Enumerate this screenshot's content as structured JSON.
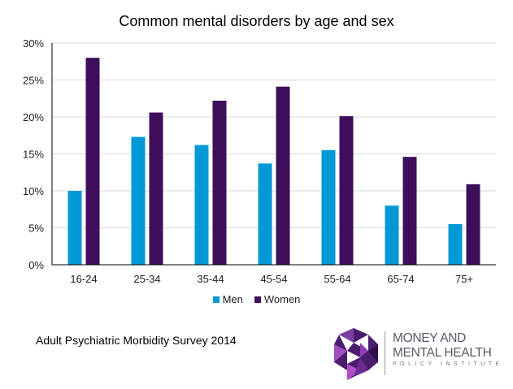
{
  "chart_data": {
    "type": "bar",
    "title": "Common mental disorders by age and sex",
    "xlabel": "",
    "ylabel": "",
    "ylim": [
      0,
      30
    ],
    "yticks": [
      "0%",
      "5%",
      "10%",
      "15%",
      "20%",
      "25%",
      "30%"
    ],
    "ytick_values": [
      0,
      5,
      10,
      15,
      20,
      25,
      30
    ],
    "grid": true,
    "legend_position": "bottom",
    "categories": [
      "16-24",
      "25-34",
      "35-44",
      "45-54",
      "55-64",
      "65-74",
      "75+"
    ],
    "series": [
      {
        "name": "Men",
        "color": "#0099D6",
        "values": [
          10.0,
          17.3,
          16.2,
          13.7,
          15.5,
          8.0,
          5.5
        ]
      },
      {
        "name": "Women",
        "color": "#3D0F5A",
        "values": [
          28.0,
          20.6,
          22.2,
          24.1,
          20.1,
          14.6,
          10.9
        ]
      }
    ]
  },
  "source": "Adult Psychiatric Morbidity Survey 2014",
  "logo": {
    "line1": "MONEY AND",
    "line2": "MENTAL HEALTH",
    "line3": "POLICY INSTITUTE"
  }
}
